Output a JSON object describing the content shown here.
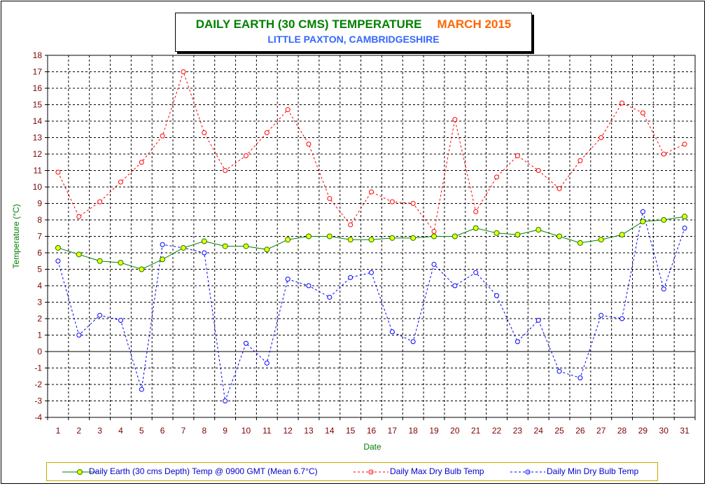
{
  "chart_data": {
    "type": "line",
    "title": "DAILY EARTH (30 CMS) TEMPERATURE",
    "title_month": "MARCH 2015",
    "subtitle": "LITTLE PAXTON, CAMBRIDGESHIRE",
    "xlabel": "Date",
    "ylabel": "Temperature (°C)",
    "ylim": [
      -4,
      18
    ],
    "yticks": [
      -4,
      -3,
      -2,
      -1,
      0,
      1,
      2,
      3,
      4,
      5,
      6,
      7,
      8,
      9,
      10,
      11,
      12,
      13,
      14,
      15,
      16,
      17,
      18
    ],
    "x": [
      1,
      2,
      3,
      4,
      5,
      6,
      7,
      8,
      9,
      10,
      11,
      12,
      13,
      14,
      15,
      16,
      17,
      18,
      19,
      20,
      21,
      22,
      23,
      24,
      25,
      26,
      27,
      28,
      29,
      30,
      31
    ],
    "grid": true,
    "legend_position": "bottom",
    "series": [
      {
        "name": "Daily Earth (30 cms Depth) Temp @ 0900 GMT (Mean 6.7°C)",
        "color": "#008000",
        "marker_color": "#ffff00",
        "style": "solid",
        "values": [
          6.3,
          5.9,
          5.5,
          5.4,
          5.0,
          5.6,
          6.3,
          6.7,
          6.4,
          6.4,
          6.2,
          6.8,
          7.0,
          7.0,
          6.8,
          6.8,
          6.9,
          6.9,
          7.0,
          7.0,
          7.5,
          7.2,
          7.1,
          7.4,
          7.0,
          6.6,
          6.8,
          7.1,
          7.9,
          8.0,
          8.2
        ]
      },
      {
        "name": "Daily Max Dry Bulb Temp",
        "color": "#ff0000",
        "style": "dashed",
        "values": [
          10.9,
          8.2,
          9.1,
          10.3,
          11.5,
          13.1,
          17.0,
          13.3,
          11.0,
          11.9,
          13.3,
          14.7,
          12.6,
          9.3,
          7.7,
          9.7,
          9.1,
          9.0,
          7.3,
          14.1,
          8.5,
          10.6,
          11.9,
          11.0,
          9.9,
          11.6,
          13.0,
          15.1,
          14.5,
          12.0,
          12.6
        ]
      },
      {
        "name": "Daily Min Dry Bulb Temp",
        "color": "#0000ff",
        "style": "dashed",
        "values": [
          5.5,
          1.0,
          2.2,
          1.9,
          -2.3,
          6.5,
          6.3,
          6.0,
          -3.0,
          0.5,
          -0.7,
          4.4,
          4.0,
          3.3,
          4.5,
          4.8,
          1.2,
          0.6,
          5.3,
          4.0,
          4.8,
          3.4,
          0.6,
          1.9,
          -1.2,
          -1.6,
          2.2,
          2.0,
          8.5,
          3.8,
          7.5
        ]
      }
    ]
  }
}
